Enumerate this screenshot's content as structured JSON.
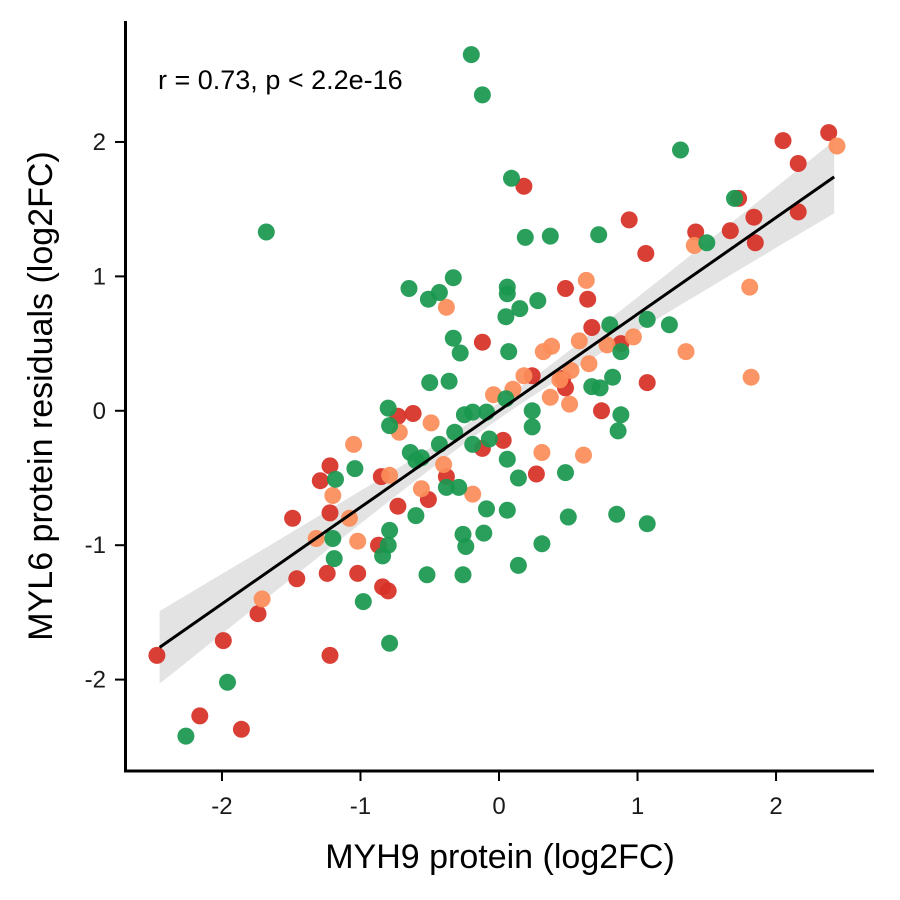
{
  "chart_data": {
    "type": "scatter",
    "title": "",
    "xlabel": "MYH9 protein (log2FC)",
    "ylabel": "MYL6 protein residuals (log2FC)",
    "xlim": [
      -2.7,
      2.7
    ],
    "ylim": [
      -2.68,
      2.9
    ],
    "x_ticks": [
      -2,
      -1,
      0,
      1,
      2
    ],
    "y_ticks": [
      -2,
      -1,
      0,
      1,
      2
    ],
    "annotation": "r = 0.73, p < 2.2e-16",
    "grid": false,
    "legend": "none",
    "colors": {
      "red": "#d73027",
      "orange": "#fc8d59",
      "green": "#1a9850",
      "line": "#000000",
      "band": "#d9d9d9"
    },
    "fit": {
      "x": [
        -2.45,
        2.42
      ],
      "y": [
        -1.76,
        1.74
      ],
      "band_halfwidth": [
        0.27,
        0.06,
        0.27
      ]
    },
    "series": [
      {
        "color_key": "red",
        "points": [
          [
            2.38,
            2.07
          ],
          [
            2.05,
            2.01
          ],
          [
            2.16,
            1.84
          ],
          [
            1.73,
            1.58
          ],
          [
            2.16,
            1.48
          ],
          [
            1.84,
            1.44
          ],
          [
            1.85,
            1.25
          ],
          [
            1.67,
            1.34
          ],
          [
            1.42,
            1.33
          ],
          [
            0.94,
            1.42
          ],
          [
            1.06,
            1.17
          ],
          [
            0.18,
            1.67
          ],
          [
            0.64,
            0.83
          ],
          [
            0.48,
            0.91
          ],
          [
            -0.12,
            0.51
          ],
          [
            0.67,
            0.62
          ],
          [
            0.88,
            0.5
          ],
          [
            0.24,
            0.26
          ],
          [
            0.48,
            0.17
          ],
          [
            0.46,
            0.24
          ],
          [
            1.07,
            0.21
          ],
          [
            0.74,
            0.0
          ],
          [
            -0.73,
            -0.04
          ],
          [
            -0.62,
            -0.02
          ],
          [
            -0.12,
            -0.28
          ],
          [
            0.03,
            -0.22
          ],
          [
            -0.38,
            -0.49
          ],
          [
            -0.51,
            -0.66
          ],
          [
            -0.85,
            -0.49
          ],
          [
            -0.73,
            -0.71
          ],
          [
            -1.22,
            -0.41
          ],
          [
            -1.29,
            -0.52
          ],
          [
            -1.22,
            -0.76
          ],
          [
            -1.49,
            -0.8
          ],
          [
            -1.24,
            -1.21
          ],
          [
            -1.02,
            -1.21
          ],
          [
            -0.84,
            -1.31
          ],
          [
            -0.8,
            -1.34
          ],
          [
            -1.46,
            -1.25
          ],
          [
            -1.74,
            -1.51
          ],
          [
            -1.99,
            -1.71
          ],
          [
            -2.47,
            -1.82
          ],
          [
            -1.22,
            -1.82
          ],
          [
            -2.16,
            -2.27
          ],
          [
            -1.86,
            -2.37
          ],
          [
            0.27,
            -0.47
          ],
          [
            -0.87,
            -1.0
          ]
        ]
      },
      {
        "color_key": "orange",
        "points": [
          [
            2.44,
            1.97
          ],
          [
            1.41,
            1.23
          ],
          [
            1.81,
            0.92
          ],
          [
            0.63,
            0.97
          ],
          [
            1.35,
            0.44
          ],
          [
            1.82,
            0.25
          ],
          [
            0.97,
            0.55
          ],
          [
            0.78,
            0.49
          ],
          [
            0.58,
            0.52
          ],
          [
            0.38,
            0.48
          ],
          [
            0.32,
            0.44
          ],
          [
            0.65,
            0.35
          ],
          [
            0.52,
            0.3
          ],
          [
            0.44,
            0.23
          ],
          [
            0.1,
            0.16
          ],
          [
            -0.04,
            0.12
          ],
          [
            0.37,
            0.1
          ],
          [
            0.51,
            0.05
          ],
          [
            -0.38,
            0.77
          ],
          [
            -0.72,
            -0.16
          ],
          [
            -0.49,
            -0.09
          ],
          [
            -0.79,
            -0.48
          ],
          [
            -0.56,
            -0.58
          ],
          [
            -0.19,
            -0.62
          ],
          [
            0.31,
            -0.31
          ],
          [
            0.61,
            -0.33
          ],
          [
            -1.05,
            -0.25
          ],
          [
            -1.2,
            -0.63
          ],
          [
            -1.08,
            -0.8
          ],
          [
            -1.02,
            -0.97
          ],
          [
            -1.32,
            -0.95
          ],
          [
            -1.71,
            -1.4
          ],
          [
            0.18,
            0.26
          ],
          [
            -0.4,
            -0.4
          ]
        ]
      },
      {
        "color_key": "green",
        "points": [
          [
            -0.2,
            2.65
          ],
          [
            -0.12,
            2.35
          ],
          [
            1.31,
            1.94
          ],
          [
            0.09,
            1.73
          ],
          [
            1.7,
            1.58
          ],
          [
            -1.68,
            1.33
          ],
          [
            0.72,
            1.31
          ],
          [
            0.37,
            1.3
          ],
          [
            0.19,
            1.29
          ],
          [
            1.5,
            1.25
          ],
          [
            -0.33,
            0.99
          ],
          [
            0.06,
            0.92
          ],
          [
            0.06,
            0.87
          ],
          [
            -0.65,
            0.91
          ],
          [
            -0.51,
            0.83
          ],
          [
            -0.43,
            0.88
          ],
          [
            0.28,
            0.82
          ],
          [
            0.15,
            0.76
          ],
          [
            0.05,
            0.7
          ],
          [
            1.07,
            0.68
          ],
          [
            1.23,
            0.64
          ],
          [
            0.8,
            0.64
          ],
          [
            -0.33,
            0.54
          ],
          [
            -0.28,
            0.43
          ],
          [
            0.07,
            0.44
          ],
          [
            0.88,
            0.44
          ],
          [
            0.82,
            0.25
          ],
          [
            0.67,
            0.18
          ],
          [
            0.73,
            0.17
          ],
          [
            -0.5,
            0.21
          ],
          [
            -0.36,
            0.22
          ],
          [
            0.05,
            0.09
          ],
          [
            -0.8,
            0.02
          ],
          [
            0.24,
            0.0
          ],
          [
            -0.09,
            -0.01
          ],
          [
            -0.25,
            -0.03
          ],
          [
            -0.19,
            -0.01
          ],
          [
            0.88,
            -0.03
          ],
          [
            -0.79,
            -0.11
          ],
          [
            0.24,
            -0.12
          ],
          [
            -0.32,
            -0.16
          ],
          [
            0.86,
            -0.15
          ],
          [
            -0.07,
            -0.21
          ],
          [
            -0.19,
            -0.25
          ],
          [
            -0.43,
            -0.25
          ],
          [
            -0.64,
            -0.31
          ],
          [
            -0.56,
            -0.35
          ],
          [
            -0.6,
            -0.37
          ],
          [
            0.06,
            -0.36
          ],
          [
            -1.04,
            -0.43
          ],
          [
            0.48,
            -0.46
          ],
          [
            -0.38,
            -0.57
          ],
          [
            -0.29,
            -0.57
          ],
          [
            0.14,
            -0.5
          ],
          [
            -1.18,
            -0.51
          ],
          [
            -0.09,
            -0.73
          ],
          [
            0.06,
            -0.74
          ],
          [
            -0.6,
            -0.78
          ],
          [
            0.5,
            -0.79
          ],
          [
            0.85,
            -0.77
          ],
          [
            1.07,
            -0.84
          ],
          [
            -0.26,
            -0.92
          ],
          [
            -0.11,
            -0.91
          ],
          [
            -0.79,
            -0.89
          ],
          [
            -1.2,
            -0.95
          ],
          [
            -0.24,
            -1.01
          ],
          [
            -0.8,
            -1.0
          ],
          [
            0.31,
            -0.99
          ],
          [
            -0.84,
            -1.08
          ],
          [
            -1.19,
            -1.1
          ],
          [
            -0.52,
            -1.22
          ],
          [
            -0.26,
            -1.22
          ],
          [
            0.14,
            -1.15
          ],
          [
            -0.98,
            -1.42
          ],
          [
            -0.79,
            -1.73
          ],
          [
            -1.96,
            -2.02
          ],
          [
            -2.26,
            -2.42
          ]
        ]
      }
    ]
  }
}
